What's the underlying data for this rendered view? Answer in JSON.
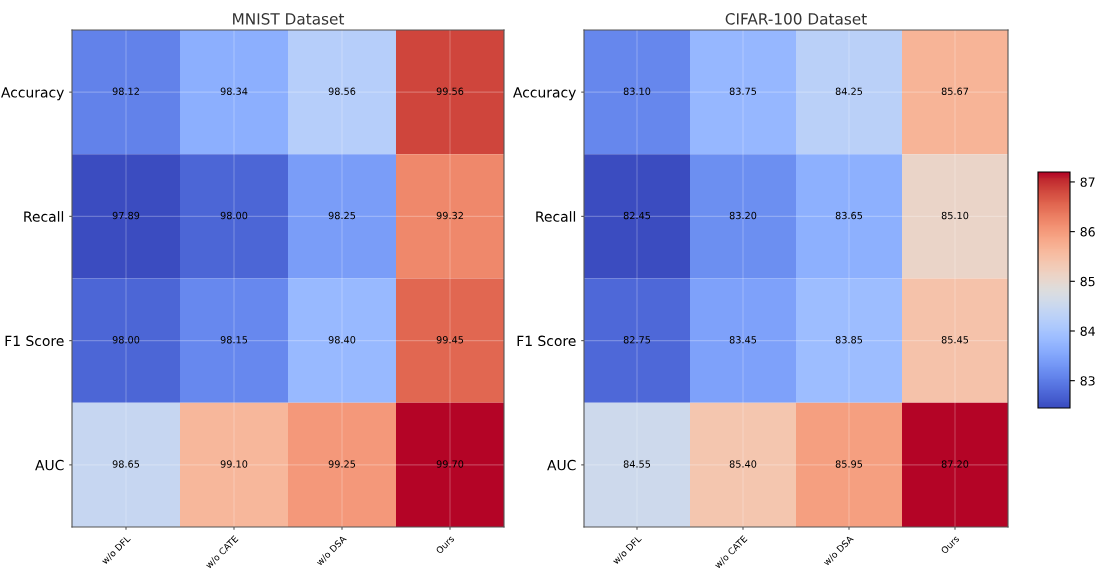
{
  "chart_data": [
    {
      "type": "heatmap",
      "title": "MNIST Dataset",
      "categories": [
        "w/o DFL",
        "w/o CATE",
        "w/o DSA",
        "Ours"
      ],
      "y_categories": [
        "Accuracy",
        "Recall",
        "F1 Score",
        "AUC"
      ],
      "cells": [
        [
          98.12,
          98.34,
          98.56,
          99.56
        ],
        [
          97.89,
          98.0,
          98.25,
          99.32
        ],
        [
          98.0,
          98.15,
          98.4,
          99.45
        ],
        [
          98.65,
          99.1,
          99.25,
          99.7
        ]
      ],
      "cell_labels": [
        [
          "98.12",
          "98.34",
          "98.56",
          "99.56"
        ],
        [
          "97.89",
          "98.00",
          "98.25",
          "99.32"
        ],
        [
          "98.00",
          "98.15",
          "98.40",
          "99.45"
        ],
        [
          "98.65",
          "99.10",
          "99.25",
          "99.70"
        ]
      ],
      "grid": true
    },
    {
      "type": "heatmap",
      "title": "CIFAR-100 Dataset",
      "categories": [
        "w/o DFL",
        "w/o CATE",
        "w/o DSA",
        "Ours"
      ],
      "y_categories": [
        "Accuracy",
        "Recall",
        "F1 Score",
        "AUC"
      ],
      "cells": [
        [
          83.1,
          83.75,
          84.25,
          85.67
        ],
        [
          82.45,
          83.2,
          83.65,
          85.1
        ],
        [
          82.75,
          83.45,
          83.85,
          85.45
        ],
        [
          84.55,
          85.4,
          85.95,
          87.2
        ]
      ],
      "cell_labels": [
        [
          "83.10",
          "83.75",
          "84.25",
          "85.67"
        ],
        [
          "82.45",
          "83.20",
          "83.65",
          "85.10"
        ],
        [
          "82.75",
          "83.45",
          "83.85",
          "85.45"
        ],
        [
          "84.55",
          "85.40",
          "85.95",
          "87.20"
        ]
      ],
      "clim": [
        82.45,
        87.2
      ],
      "cticks": [
        83,
        84,
        85,
        86,
        87
      ],
      "grid": true
    }
  ]
}
